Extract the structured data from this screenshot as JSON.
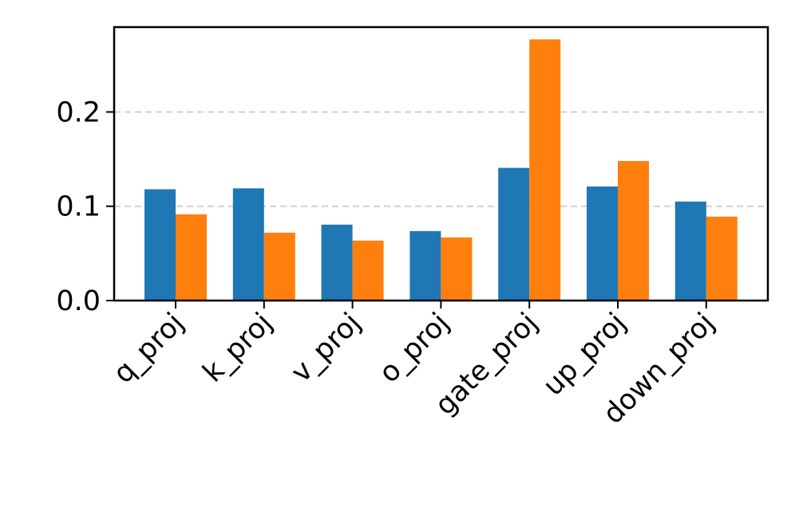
{
  "chart_data": {
    "type": "bar",
    "categories": [
      "q_proj",
      "k_proj",
      "v_proj",
      "o_proj",
      "gate_proj",
      "up_proj",
      "down_proj"
    ],
    "series": [
      {
        "color": "#1f77b4",
        "values": [
          0.118,
          0.119,
          0.0805,
          0.0737,
          0.1407,
          0.121,
          0.105
        ]
      },
      {
        "color": "#ff7f0e",
        "values": [
          0.0915,
          0.072,
          0.0636,
          0.067,
          0.277,
          0.148,
          0.089
        ]
      }
    ],
    "ylim": [
      0,
      0.29
    ],
    "yticks": [
      {
        "value": 0,
        "label": "0.0"
      },
      0.1,
      0.2
    ],
    "grid": true
  }
}
